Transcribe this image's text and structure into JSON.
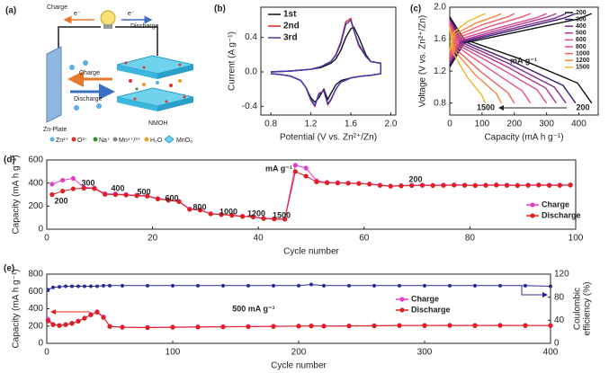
{
  "schematic": {
    "label": "(a)",
    "charge": "Charge",
    "e1": "e⁻",
    "discharge": "Discharge",
    "e2": "e⁻",
    "charge_arrow": "Charge",
    "discharge_arrow": "Discharge",
    "zn_plate": "Zn-Plate",
    "nmoh": "NMOH",
    "legend": [
      "Zn²⁺",
      "O²⁻",
      "Na⁺",
      "Mn⁴⁺/³⁺",
      "H₂O",
      "MnO₆"
    ]
  },
  "chart_data": [
    {
      "type": "line",
      "panel_label": "(b)",
      "xlabel": "Potential (V vs. Zn²⁺/Zn)",
      "ylabel": "Current (A g⁻¹)",
      "xlim": [
        0.7,
        2.05
      ],
      "ylim": [
        -0.5,
        0.75
      ],
      "xticks": [
        0.8,
        1.2,
        1.6,
        {
          "value": 2,
          "label": "2.0"
        }
      ],
      "yticks": [
        -0.4,
        {
          "value": 0,
          "label": "0.0"
        },
        0.4
      ],
      "legend": "upper left",
      "x": [
        0.8,
        1.0,
        1.2,
        1.3,
        1.4,
        1.45,
        1.5,
        1.55,
        1.6,
        1.63,
        1.68,
        1.75,
        1.8,
        1.9,
        1.9,
        1.8,
        1.7,
        1.6,
        1.5,
        1.45,
        1.4,
        1.37,
        1.33,
        1.28,
        1.24,
        1.2,
        1.15,
        1.1,
        1.0,
        0.9,
        0.8
      ],
      "series": [
        {
          "name": "1st",
          "color": "#111111",
          "values": [
            0.0,
            0.01,
            0.03,
            0.05,
            0.1,
            0.15,
            0.25,
            0.4,
            0.5,
            0.52,
            0.4,
            0.2,
            0.12,
            0.1,
            -0.02,
            -0.04,
            -0.05,
            -0.07,
            -0.1,
            -0.15,
            -0.25,
            -0.32,
            -0.2,
            -0.3,
            -0.35,
            -0.3,
            -0.18,
            -0.1,
            -0.05,
            -0.03,
            -0.02
          ]
        },
        {
          "name": "2nd",
          "color": "#e02424",
          "values": [
            0.0,
            0.01,
            0.03,
            0.06,
            0.12,
            0.2,
            0.35,
            0.58,
            0.62,
            0.48,
            0.3,
            0.18,
            0.12,
            0.1,
            -0.02,
            -0.04,
            -0.05,
            -0.07,
            -0.12,
            -0.2,
            -0.33,
            -0.38,
            -0.22,
            -0.25,
            -0.4,
            -0.33,
            -0.18,
            -0.1,
            -0.05,
            -0.03,
            -0.02
          ]
        },
        {
          "name": "3rd",
          "color": "#3a3ab8",
          "values": [
            0.0,
            0.01,
            0.03,
            0.06,
            0.12,
            0.19,
            0.33,
            0.55,
            0.6,
            0.48,
            0.32,
            0.18,
            0.12,
            0.1,
            -0.02,
            -0.04,
            -0.05,
            -0.07,
            -0.12,
            -0.2,
            -0.32,
            -0.37,
            -0.22,
            -0.26,
            -0.39,
            -0.32,
            -0.18,
            -0.1,
            -0.05,
            -0.03,
            -0.02
          ]
        }
      ]
    },
    {
      "type": "line",
      "panel_label": "(c)",
      "xlabel": "Capacity (mA h g⁻¹)",
      "ylabel": "Voltage (V vs. Zn²⁺/Zn)",
      "xlim": [
        0,
        460
      ],
      "ylim": [
        0.65,
        2.0
      ],
      "xticks": [
        0,
        100,
        200,
        300,
        400
      ],
      "yticks": [
        0.8,
        1.2,
        1.6,
        {
          "value": 2,
          "label": "2.0"
        }
      ],
      "legend": "upper right",
      "annotations": [
        "mA g⁻¹",
        "1500",
        "200"
      ],
      "series": [
        {
          "name": "200",
          "color": "#111111",
          "x": [
            0,
            44,
            220,
            396,
            440,
            null,
            0,
            44,
            220,
            396,
            440
          ],
          "values": [
            1.88,
            1.6,
            1.35,
            1.05,
            0.8,
            null,
            1.25,
            1.55,
            1.7,
            1.85,
            1.92
          ]
        },
        {
          "name": "300",
          "color": "#3b1d6e",
          "x": [
            0,
            39,
            195,
            351,
            390,
            null,
            0,
            39,
            195,
            351,
            390
          ],
          "values": [
            1.86,
            1.58,
            1.32,
            1.02,
            0.8,
            null,
            1.27,
            1.56,
            1.71,
            1.86,
            1.92
          ]
        },
        {
          "name": "400",
          "color": "#7a2a8f",
          "x": [
            0,
            36,
            180,
            324,
            360,
            null,
            0,
            36,
            180,
            324,
            360
          ],
          "values": [
            1.84,
            1.56,
            1.3,
            1.0,
            0.8,
            null,
            1.3,
            1.57,
            1.72,
            1.86,
            1.92
          ]
        },
        {
          "name": "500",
          "color": "#b0348f",
          "x": [
            0,
            33,
            165,
            297,
            330,
            null,
            0,
            33,
            165,
            297,
            330
          ],
          "values": [
            1.83,
            1.54,
            1.28,
            0.99,
            0.8,
            null,
            1.32,
            1.58,
            1.73,
            1.87,
            1.92
          ]
        },
        {
          "name": "600",
          "color": "#d94a8a",
          "x": [
            0,
            30,
            150,
            270,
            300,
            null,
            0,
            30,
            150,
            270,
            300
          ],
          "values": [
            1.82,
            1.52,
            1.25,
            0.97,
            0.8,
            null,
            1.34,
            1.6,
            1.74,
            1.87,
            1.92
          ]
        },
        {
          "name": "800",
          "color": "#e8557a",
          "x": [
            0,
            25,
            125,
            225,
            250,
            null,
            0,
            25,
            125,
            225,
            250
          ],
          "values": [
            1.8,
            1.5,
            1.22,
            0.95,
            0.8,
            null,
            1.37,
            1.62,
            1.76,
            1.88,
            1.92
          ]
        },
        {
          "name": "1000",
          "color": "#f0605e",
          "x": [
            0,
            20,
            100,
            180,
            200,
            null,
            0,
            20,
            100,
            180,
            200
          ],
          "values": [
            1.78,
            1.47,
            1.18,
            0.93,
            0.8,
            null,
            1.4,
            1.64,
            1.78,
            1.88,
            1.92
          ]
        },
        {
          "name": "1200",
          "color": "#f5883e",
          "x": [
            0,
            16,
            80,
            144,
            160,
            null,
            0,
            16,
            80,
            144,
            160
          ],
          "values": [
            1.76,
            1.45,
            1.15,
            0.92,
            0.8,
            null,
            1.43,
            1.66,
            1.8,
            1.89,
            1.92
          ]
        },
        {
          "name": "1500",
          "color": "#f5b52a",
          "x": [
            0,
            11,
            55,
            99,
            110,
            null,
            0,
            11,
            55,
            99,
            110
          ],
          "values": [
            1.74,
            1.42,
            1.12,
            0.9,
            0.8,
            null,
            1.46,
            1.68,
            1.82,
            1.9,
            1.92
          ]
        }
      ]
    },
    {
      "type": "line",
      "panel_label": "(d)",
      "xlabel": "Cycle number",
      "ylabel": "Capacity (mA h g⁻¹)",
      "markers": true,
      "xlim": [
        0,
        100
      ],
      "ylim": [
        0,
        600
      ],
      "xticks": [
        0,
        20,
        40,
        60,
        80,
        100
      ],
      "yticks": [
        0,
        200,
        400,
        600
      ],
      "legend": "lower right",
      "annotations": [
        "mA g⁻¹",
        "200",
        "300",
        "400",
        "500",
        "600",
        "800",
        "1000",
        "1200",
        "1500",
        "200"
      ],
      "x": [
        1,
        3,
        5,
        7,
        9,
        11,
        13,
        15,
        17,
        19,
        21,
        23,
        25,
        27,
        29,
        31,
        33,
        35,
        37,
        39,
        41,
        43,
        45,
        47,
        49,
        51,
        53,
        55,
        57,
        59,
        61,
        63,
        65,
        67,
        69,
        71,
        73,
        75,
        77,
        79,
        81,
        83,
        85,
        87,
        89,
        91,
        93,
        95,
        97,
        99
      ],
      "series": [
        {
          "name": "Charge",
          "color": "#e040c8",
          "values": [
            390,
            425,
            440,
            362,
            358,
            308,
            305,
            300,
            294,
            290,
            266,
            254,
            242,
            176,
            168,
            135,
            129,
            123,
            113,
            109,
            95,
            91,
            89,
            555,
            530,
            420,
            406,
            404,
            401,
            398,
            393,
            383,
            375,
            378,
            381,
            383,
            381,
            383,
            385,
            383,
            381,
            383,
            385,
            383,
            381,
            383,
            385,
            383,
            383,
            385
          ]
        },
        {
          "name": "Discharge",
          "color": "#e02020",
          "values": [
            300,
            330,
            350,
            355,
            352,
            302,
            300,
            296,
            290,
            286,
            262,
            250,
            238,
            172,
            165,
            132,
            126,
            120,
            110,
            106,
            92,
            88,
            86,
            500,
            460,
            410,
            402,
            400,
            398,
            395,
            390,
            380,
            372,
            375,
            378,
            380,
            378,
            380,
            382,
            380,
            378,
            380,
            382,
            380,
            378,
            380,
            382,
            380,
            380,
            382
          ]
        }
      ]
    },
    {
      "type": "line",
      "panel_label": "(e)",
      "xlabel": "Cycle number",
      "ylabel": "Capacity (mA h g⁻¹)",
      "y2label": [
        "Coulombic",
        "efficiency (%)"
      ],
      "markers": true,
      "xlim": [
        0,
        400
      ],
      "ylim": [
        0,
        800
      ],
      "y2lim": [
        0,
        120
      ],
      "xticks": [
        0,
        100,
        200,
        300,
        400
      ],
      "yticks": [
        0,
        200,
        400,
        600,
        800
      ],
      "y2ticks": [
        0,
        40,
        80,
        120
      ],
      "legend": "center",
      "annotations": [
        "500 mA g⁻¹"
      ],
      "x": [
        1,
        5,
        10,
        15,
        20,
        25,
        30,
        35,
        40,
        45,
        50,
        60,
        80,
        100,
        120,
        140,
        160,
        180,
        200,
        210,
        220,
        240,
        260,
        280,
        300,
        320,
        340,
        360,
        380,
        400
      ],
      "series": [
        {
          "name": "Charge",
          "color": "#e040c8",
          "values": [
            280,
            220,
            208,
            218,
            233,
            258,
            293,
            334,
            365,
            305,
            198,
            188,
            185,
            188,
            191,
            193,
            195,
            198,
            201,
            203,
            201,
            203,
            205,
            208,
            208,
            209,
            208,
            209,
            208,
            208
          ]
        },
        {
          "name": "Discharge",
          "color": "#e02020",
          "values": [
            260,
            215,
            205,
            215,
            230,
            255,
            290,
            330,
            360,
            300,
            195,
            185,
            182,
            185,
            188,
            190,
            192,
            195,
            198,
            200,
            198,
            200,
            202,
            205,
            205,
            206,
            205,
            206,
            205,
            205
          ]
        },
        {
          "color": "#2b2ba0",
          "axis": "y2",
          "values": [
            93,
            97,
            98,
            99,
            99,
            99,
            99,
            99,
            99,
            100,
            100,
            100,
            100,
            100,
            100,
            100,
            100,
            100,
            100,
            102,
            100,
            100,
            100,
            100,
            100,
            100,
            100,
            100,
            100,
            99
          ]
        }
      ]
    }
  ]
}
